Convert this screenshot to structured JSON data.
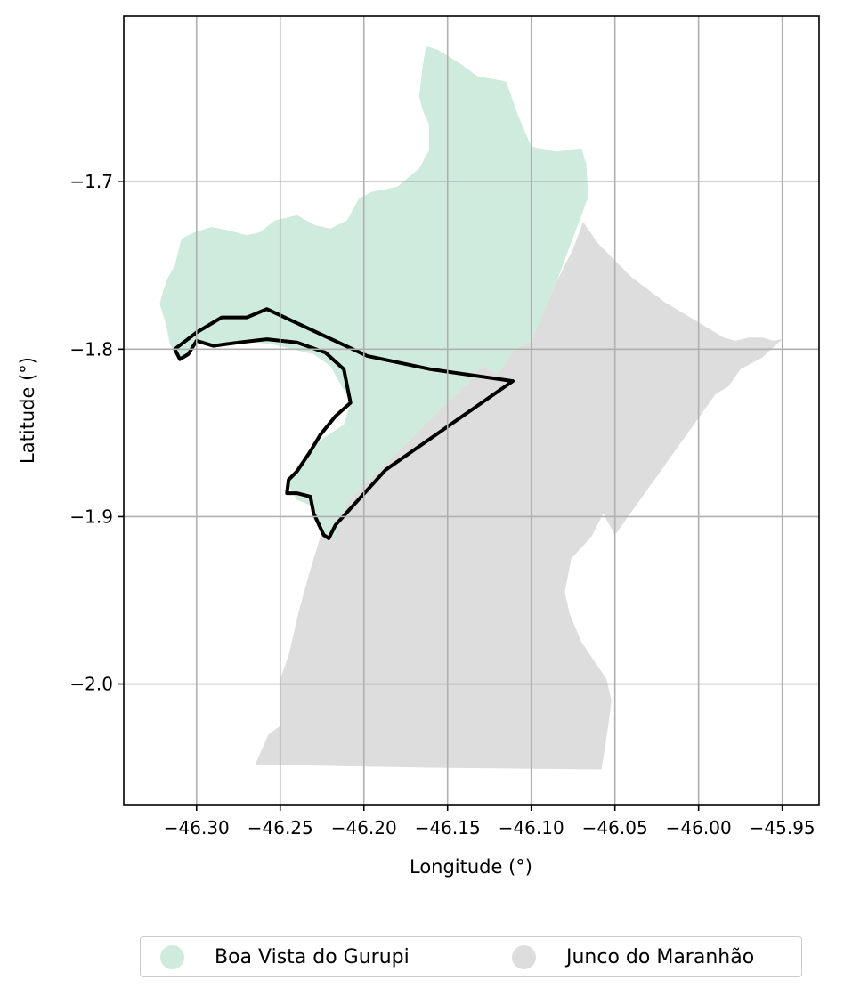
{
  "map": {
    "xlabel": "Longitude (°)",
    "ylabel": "Latitude (°)",
    "xlim": [
      -46.3435,
      -45.928
    ],
    "ylim": [
      -2.072,
      -1.601
    ],
    "x_ticks": [
      -46.3,
      -46.25,
      -46.2,
      -46.15,
      -46.1,
      -46.05,
      -46.0,
      -45.95
    ],
    "x_tick_labels": [
      "−46.30",
      "−46.25",
      "−46.20",
      "−46.15",
      "−46.10",
      "−46.05",
      "−46.00",
      "−45.95"
    ],
    "y_ticks": [
      -1.7,
      -1.8,
      -1.9,
      -2.0
    ],
    "y_tick_labels": [
      "−1.7",
      "−1.8",
      "−1.9",
      "−2.0"
    ],
    "grid": true
  },
  "regions": [
    {
      "name": "Junco do Maranhão",
      "color": "#dddddd",
      "coords": [
        [
          -46.069,
          -1.724
        ],
        [
          -46.06,
          -1.737
        ],
        [
          -46.052,
          -1.745
        ],
        [
          -46.04,
          -1.757
        ],
        [
          -46.02,
          -1.772
        ],
        [
          -46.0,
          -1.784
        ],
        [
          -45.985,
          -1.793
        ],
        [
          -45.978,
          -1.795
        ],
        [
          -45.97,
          -1.793
        ],
        [
          -45.962,
          -1.793
        ],
        [
          -45.955,
          -1.795
        ],
        [
          -45.95,
          -1.794
        ],
        [
          -45.962,
          -1.805
        ],
        [
          -45.975,
          -1.812
        ],
        [
          -45.982,
          -1.822
        ],
        [
          -45.99,
          -1.827
        ],
        [
          -46.05,
          -1.911
        ],
        [
          -46.057,
          -1.898
        ],
        [
          -46.064,
          -1.912
        ],
        [
          -46.076,
          -1.925
        ],
        [
          -46.08,
          -1.945
        ],
        [
          -46.077,
          -1.958
        ],
        [
          -46.07,
          -1.975
        ],
        [
          -46.055,
          -1.997
        ],
        [
          -46.052,
          -2.01
        ],
        [
          -46.054,
          -2.025
        ],
        [
          -46.058,
          -2.051
        ],
        [
          -46.156,
          -2.05
        ],
        [
          -46.214,
          -2.049
        ],
        [
          -46.265,
          -2.048
        ],
        [
          -46.257,
          -2.03
        ],
        [
          -46.25,
          -2.025
        ],
        [
          -46.25,
          -1.997
        ],
        [
          -46.245,
          -1.983
        ],
        [
          -46.239,
          -1.957
        ],
        [
          -46.233,
          -1.935
        ],
        [
          -46.226,
          -1.912
        ],
        [
          -46.209,
          -1.89
        ],
        [
          -46.138,
          -1.82
        ],
        [
          -46.13,
          -1.81
        ],
        [
          -46.12,
          -1.815
        ],
        [
          -46.11,
          -1.8
        ],
        [
          -46.1,
          -1.795
        ],
        [
          -46.085,
          -1.76
        ],
        [
          -46.075,
          -1.74
        ]
      ]
    },
    {
      "name": "Boa Vista do Gurupi",
      "color": "#cfebdd",
      "coords": [
        [
          -46.316,
          -1.797
        ],
        [
          -46.318,
          -1.786
        ],
        [
          -46.322,
          -1.773
        ],
        [
          -46.32,
          -1.765
        ],
        [
          -46.317,
          -1.757
        ],
        [
          -46.313,
          -1.75
        ],
        [
          -46.309,
          -1.734
        ],
        [
          -46.301,
          -1.73
        ],
        [
          -46.291,
          -1.727
        ],
        [
          -46.281,
          -1.729
        ],
        [
          -46.27,
          -1.732
        ],
        [
          -46.262,
          -1.73
        ],
        [
          -46.253,
          -1.723
        ],
        [
          -46.24,
          -1.72
        ],
        [
          -46.229,
          -1.726
        ],
        [
          -46.22,
          -1.728
        ],
        [
          -46.21,
          -1.723
        ],
        [
          -46.203,
          -1.71
        ],
        [
          -46.195,
          -1.706
        ],
        [
          -46.18,
          -1.703
        ],
        [
          -46.167,
          -1.692
        ],
        [
          -46.161,
          -1.681
        ],
        [
          -46.161,
          -1.666
        ],
        [
          -46.165,
          -1.657
        ],
        [
          -46.167,
          -1.649
        ],
        [
          -46.165,
          -1.632
        ],
        [
          -46.163,
          -1.619
        ],
        [
          -46.156,
          -1.621
        ],
        [
          -46.143,
          -1.629
        ],
        [
          -46.132,
          -1.637
        ],
        [
          -46.115,
          -1.64
        ],
        [
          -46.108,
          -1.66
        ],
        [
          -46.1,
          -1.679
        ],
        [
          -46.085,
          -1.682
        ],
        [
          -46.07,
          -1.68
        ],
        [
          -46.067,
          -1.69
        ],
        [
          -46.066,
          -1.709
        ],
        [
          -46.07,
          -1.72
        ],
        [
          -46.085,
          -1.76
        ],
        [
          -46.1,
          -1.795
        ],
        [
          -46.11,
          -1.8
        ],
        [
          -46.12,
          -1.815
        ],
        [
          -46.13,
          -1.81
        ],
        [
          -46.138,
          -1.82
        ],
        [
          -46.209,
          -1.89
        ],
        [
          -46.217,
          -1.912
        ],
        [
          -46.224,
          -1.91
        ],
        [
          -46.23,
          -1.894
        ],
        [
          -46.24,
          -1.89
        ],
        [
          -46.246,
          -1.88
        ],
        [
          -46.24,
          -1.87
        ],
        [
          -46.23,
          -1.857
        ],
        [
          -46.212,
          -1.845
        ],
        [
          -46.208,
          -1.832
        ],
        [
          -46.22,
          -1.81
        ],
        [
          -46.23,
          -1.803
        ],
        [
          -46.255,
          -1.797
        ],
        [
          -46.275,
          -1.795
        ],
        [
          -46.29,
          -1.798
        ],
        [
          -46.3,
          -1.795
        ],
        [
          -46.305,
          -1.803
        ],
        [
          -46.31,
          -1.806
        ]
      ]
    }
  ],
  "outline": {
    "color": "#000000",
    "coords": [
      [
        -46.313,
        -1.8
      ],
      [
        -46.3,
        -1.79
      ],
      [
        -46.285,
        -1.781
      ],
      [
        -46.27,
        -1.781
      ],
      [
        -46.258,
        -1.776
      ],
      [
        -46.198,
        -1.804
      ],
      [
        -46.16,
        -1.812
      ],
      [
        -46.111,
        -1.819
      ],
      [
        -46.187,
        -1.872
      ],
      [
        -46.217,
        -1.905
      ],
      [
        -46.221,
        -1.913
      ],
      [
        -46.224,
        -1.911
      ],
      [
        -46.23,
        -1.898
      ],
      [
        -46.232,
        -1.888
      ],
      [
        -46.24,
        -1.886
      ],
      [
        -46.246,
        -1.886
      ],
      [
        -46.245,
        -1.878
      ],
      [
        -46.24,
        -1.873
      ],
      [
        -46.232,
        -1.861
      ],
      [
        -46.226,
        -1.851
      ],
      [
        -46.217,
        -1.84
      ],
      [
        -46.208,
        -1.832
      ],
      [
        -46.212,
        -1.812
      ],
      [
        -46.223,
        -1.802
      ],
      [
        -46.24,
        -1.796
      ],
      [
        -46.258,
        -1.794
      ],
      [
        -46.275,
        -1.796
      ],
      [
        -46.29,
        -1.798
      ],
      [
        -46.3,
        -1.795
      ],
      [
        -46.305,
        -1.803
      ],
      [
        -46.31,
        -1.806
      ],
      [
        -46.313,
        -1.8
      ]
    ]
  },
  "legend": [
    {
      "label": "Boa Vista do Gurupi",
      "color": "#cfebdd"
    },
    {
      "label": "Junco do Maranhão",
      "color": "#dddddd"
    }
  ]
}
